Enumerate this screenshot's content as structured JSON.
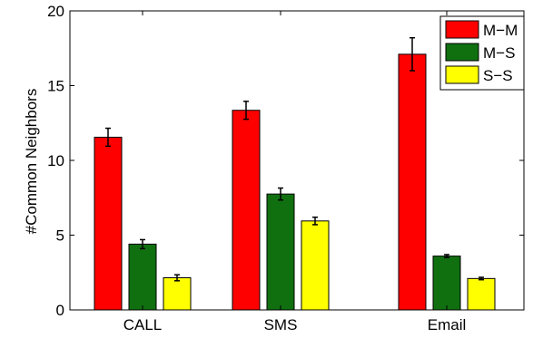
{
  "chart_data": {
    "type": "bar",
    "title": "",
    "xlabel": "",
    "ylabel": "#Common Neighbors",
    "categories": [
      "CALL",
      "SMS",
      "Email"
    ],
    "ylim": [
      0,
      20
    ],
    "yticks": [
      0,
      5,
      10,
      15,
      20
    ],
    "grid": false,
    "legend_position": "top-right",
    "series": [
      {
        "name": "M−M",
        "color": "#ff0000",
        "values": [
          11.55,
          13.35,
          17.1
        ],
        "errors": [
          0.6,
          0.6,
          1.1
        ]
      },
      {
        "name": "M−S",
        "color": "#107010",
        "values": [
          4.4,
          7.75,
          3.6
        ],
        "errors": [
          0.3,
          0.4,
          0.1
        ]
      },
      {
        "name": "S−S",
        "color": "#ffff00",
        "values": [
          2.15,
          5.95,
          2.1
        ],
        "errors": [
          0.2,
          0.25,
          0.08
        ]
      }
    ]
  }
}
